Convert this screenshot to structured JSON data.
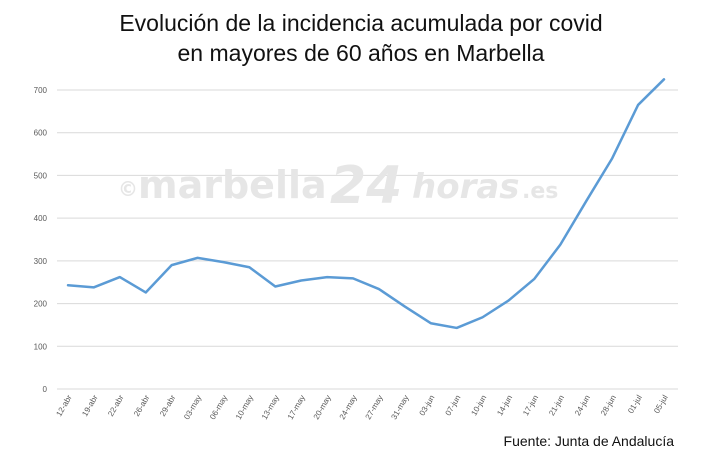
{
  "title_line1": "Evolución de la incidencia acumulada por covid",
  "title_line2": "en mayores de 60 años en Marbella",
  "source": "Fuente: Junta de Andalucía",
  "watermark": {
    "copyright": "©",
    "part1": "marbella",
    "part2": "24",
    "part3": "horas",
    "part4": ".es"
  },
  "colors": {
    "line": "#5b9bd5",
    "grid": "#d9d9d9",
    "axis_text": "#595959",
    "watermark": "#e6e6e6"
  },
  "chart_data": {
    "type": "line",
    "title": "Evolución de la incidencia acumulada por covid en mayores de 60 años en Marbella",
    "ylim": [
      0,
      700
    ],
    "yticks": [
      0,
      100,
      200,
      300,
      400,
      500,
      600,
      700
    ],
    "grid": true,
    "categories": [
      "12-abr",
      "19-abr",
      "22-abr",
      "26-abr",
      "29-abr",
      "03-may",
      "06-may",
      "10-may",
      "13-may",
      "17-may",
      "20-may",
      "24-may",
      "27-may",
      "31-may",
      "03-jun",
      "07-jun",
      "10-jun",
      "14-jun",
      "17-jun",
      "21-jun",
      "24-jun",
      "28-jun",
      "01-jul",
      "05-jul"
    ],
    "values": [
      243,
      238,
      262,
      226,
      290,
      307,
      297,
      285,
      240,
      254,
      262,
      259,
      234,
      193,
      154,
      143,
      168,
      207,
      258,
      338,
      440,
      540,
      665,
      725
    ]
  }
}
